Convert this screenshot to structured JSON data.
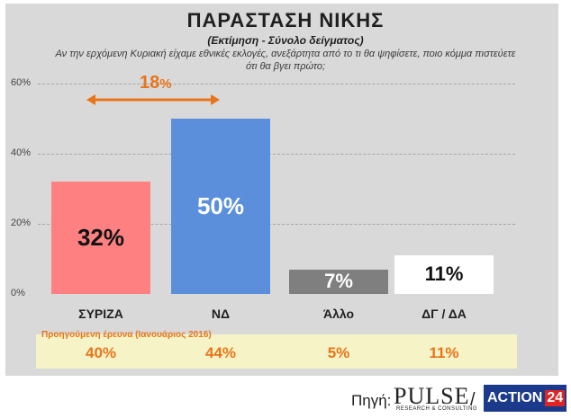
{
  "chart_data": {
    "type": "bar",
    "title": "ΠΑΡΑΣΤΑΣΗ ΝΙΚΗΣ",
    "subtitle": "(Εκτίμηση - Σύνολο δείγματος)",
    "question": "Αν την ερχόμενη Κυριακή είχαμε εθνικές εκλογές, ανεξάρτητα από το τι θα ψηφίσετε, ποιο κόμμα πιστεύετε ότι θα βγει πρώτο;",
    "categories": [
      "ΣΥΡΙΖΑ",
      "ΝΔ",
      "Άλλο",
      "ΔΓ / ΔΑ"
    ],
    "values": [
      32,
      50,
      7,
      11
    ],
    "value_labels": [
      "32%",
      "50%",
      "7%",
      "11%"
    ],
    "colors": [
      "#ff8080",
      "#5b8fdb",
      "#7f7f7f",
      "#ffffff"
    ],
    "label_colors": [
      "#111111",
      "#ffffff",
      "#ffffff",
      "#111111"
    ],
    "ylim": [
      0,
      60
    ],
    "yticks": [
      0,
      20,
      40,
      60
    ],
    "ytick_labels": [
      "0%",
      "20%",
      "40%",
      "60%"
    ],
    "grid": true,
    "annotation": {
      "value": "18",
      "unit": "%",
      "color": "#e8751a",
      "between": [
        "ΣΥΡΙΖΑ",
        "ΝΔ"
      ]
    },
    "previous_survey": {
      "title": "Προηγούμενη έρευνα (Ιανουάριος 2016)",
      "values": [
        "40%",
        "44%",
        "5%",
        "11%"
      ]
    }
  },
  "footer": {
    "source_label": "Πηγή:",
    "pulse_logo": "PULSE",
    "pulse_tagline": "RESEARCH & CONSULTING",
    "separator": "/",
    "action_logo_text": "ACTION",
    "action_logo_num": "24"
  }
}
